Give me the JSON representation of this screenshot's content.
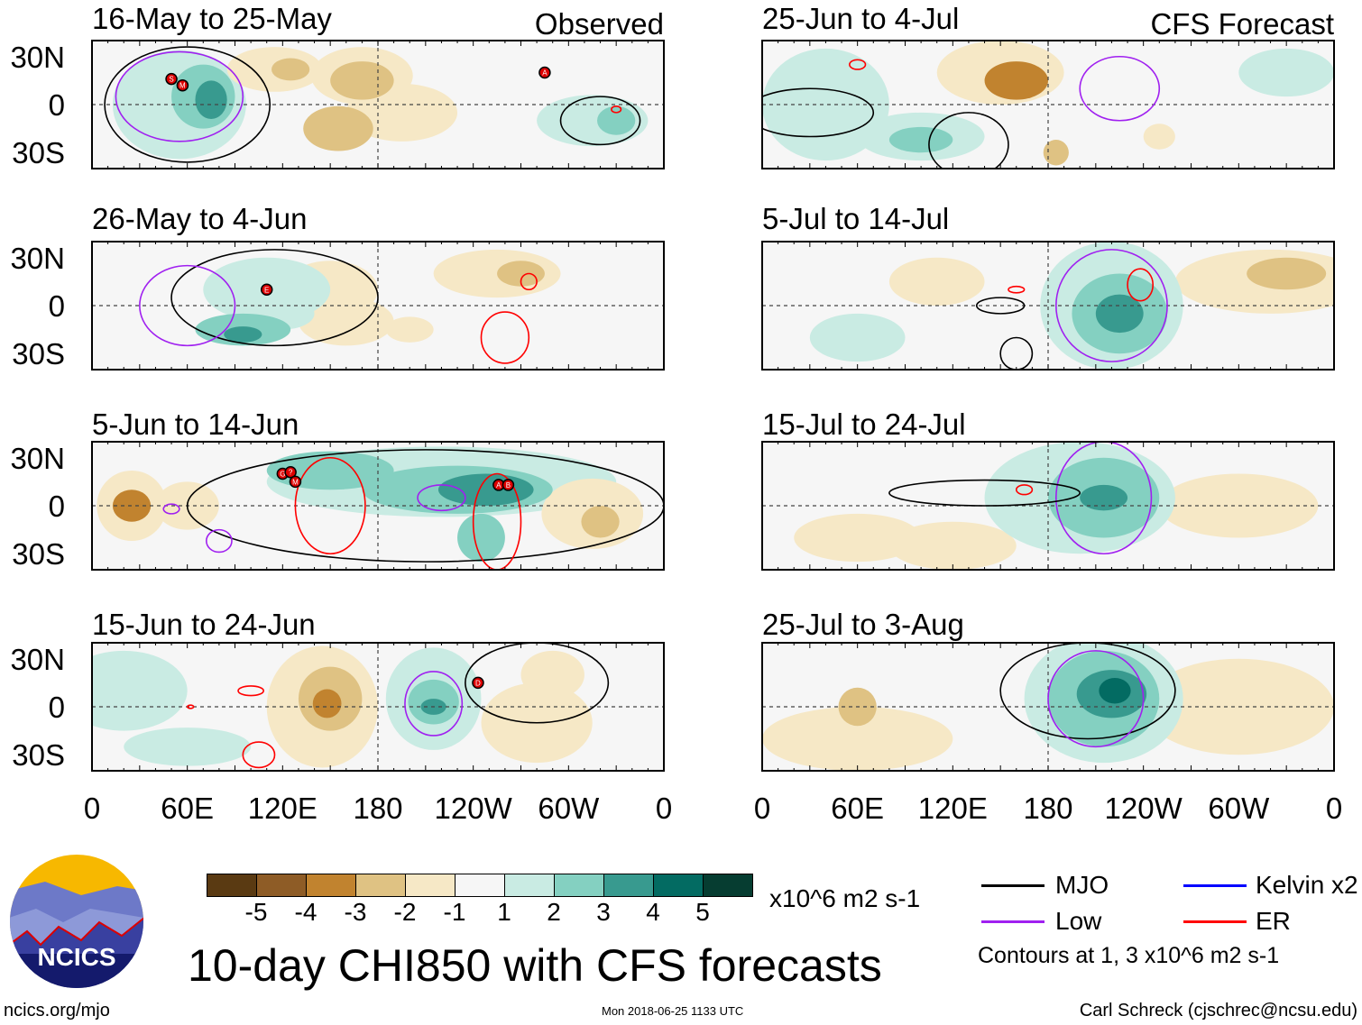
{
  "title": "10-day CHI850 with CFS forecasts",
  "logo_text": "NCICS",
  "footer": {
    "left": "ncics.org/mjo",
    "center": "Mon 2018-06-25 1133 UTC",
    "right": "Carl Schreck (cjschrec@ncsu.edu)"
  },
  "colorbar": {
    "unit": "x10^6 m2 s-1",
    "labels": [
      "-5",
      "-4",
      "-3",
      "-2",
      "-1",
      "1",
      "2",
      "3",
      "4",
      "5"
    ],
    "colors": [
      "#5a3a12",
      "#8e5c26",
      "#c1832f",
      "#dfc283",
      "#f6e8c6",
      "#f6f6f6",
      "#c9ebe3",
      "#84d0c1",
      "#389a8f",
      "#036b62",
      "#063d31"
    ]
  },
  "legend": {
    "items": [
      {
        "label": "MJO",
        "color": "#000000"
      },
      {
        "label": "Kelvin x2",
        "color": "#0000ff"
      },
      {
        "label": "Low",
        "color": "#a020f0"
      },
      {
        "label": "ER",
        "color": "#ff0000"
      }
    ],
    "note": "Contours at 1, 3 x10^6 m2 s-1"
  },
  "axes": {
    "ylabels": [
      "30N",
      "0",
      "30S"
    ],
    "ylat": [
      30,
      0,
      -30
    ],
    "xlabels": [
      "0",
      "60E",
      "120E",
      "180",
      "120W",
      "60W",
      "0"
    ],
    "xlon": [
      0,
      60,
      120,
      180,
      240,
      300,
      360
    ],
    "lat_range": [
      40,
      -40
    ],
    "lon_range": [
      0,
      360
    ]
  },
  "chart_data": {
    "type": "map",
    "panels": [
      {
        "title": "16-May to 25-May",
        "label": "Observed",
        "shading": [
          [
            55,
            0,
            42,
            34,
            1
          ],
          [
            70,
            5,
            20,
            20,
            2
          ],
          [
            75,
            3,
            10,
            12,
            3
          ],
          [
            115,
            22,
            30,
            14,
            -1
          ],
          [
            125,
            22,
            12,
            7,
            -2
          ],
          [
            170,
            18,
            32,
            18,
            -1
          ],
          [
            170,
            15,
            20,
            12,
            -2
          ],
          [
            155,
            -15,
            22,
            14,
            -2
          ],
          [
            195,
            -5,
            35,
            18,
            -1
          ],
          [
            315,
            -10,
            35,
            16,
            1
          ],
          [
            330,
            -10,
            12,
            9,
            2
          ]
        ],
        "contours": [
          [
            "MJO",
            60,
            0,
            52,
            36
          ],
          [
            "Low",
            55,
            5,
            40,
            28
          ],
          [
            "MJO",
            320,
            -10,
            25,
            15
          ],
          [
            "ER",
            330,
            -3,
            3,
            2
          ]
        ],
        "storms": [
          [
            50,
            16,
            "S"
          ],
          [
            57,
            12,
            "M"
          ],
          [
            285,
            20,
            "A"
          ]
        ]
      },
      {
        "title": "26-May to 4-Jun",
        "label": "",
        "shading": [
          [
            150,
            10,
            30,
            18,
            -1
          ],
          [
            160,
            -10,
            30,
            15,
            -1
          ],
          [
            255,
            20,
            40,
            15,
            -1
          ],
          [
            270,
            20,
            15,
            8,
            -2
          ],
          [
            200,
            -15,
            15,
            8,
            -1
          ],
          [
            110,
            10,
            40,
            20,
            1
          ],
          [
            95,
            -15,
            30,
            10,
            2
          ],
          [
            95,
            -18,
            12,
            5,
            3
          ],
          [
            120,
            -5,
            20,
            10,
            1
          ]
        ],
        "contours": [
          [
            "MJO",
            115,
            5,
            65,
            30
          ],
          [
            "Low",
            60,
            0,
            30,
            25
          ],
          [
            "ER",
            260,
            -20,
            15,
            16
          ],
          [
            "ER",
            275,
            15,
            5,
            5
          ]
        ],
        "storms": [
          [
            110,
            10,
            "E"
          ]
        ]
      },
      {
        "title": "5-Jun to 14-Jun",
        "label": "",
        "shading": [
          [
            220,
            15,
            110,
            22,
            1
          ],
          [
            230,
            10,
            60,
            15,
            2
          ],
          [
            248,
            10,
            30,
            10,
            3
          ],
          [
            245,
            -20,
            15,
            15,
            2
          ],
          [
            150,
            22,
            40,
            12,
            2
          ],
          [
            25,
            0,
            22,
            22,
            -1
          ],
          [
            25,
            0,
            12,
            10,
            -3
          ],
          [
            60,
            0,
            20,
            15,
            -1
          ],
          [
            315,
            -5,
            32,
            22,
            -1
          ],
          [
            320,
            -10,
            12,
            10,
            -2
          ]
        ],
        "contours": [
          [
            "MJO",
            210,
            0,
            150,
            35
          ],
          [
            "ER",
            255,
            -10,
            15,
            30
          ],
          [
            "ER",
            150,
            0,
            22,
            30
          ],
          [
            "Low",
            220,
            5,
            15,
            8
          ],
          [
            "Low",
            50,
            -2,
            5,
            3
          ],
          [
            "Low",
            80,
            -22,
            8,
            7
          ]
        ],
        "storms": [
          [
            120,
            20,
            "G"
          ],
          [
            125,
            21,
            "?"
          ],
          [
            128,
            15,
            "M"
          ],
          [
            256,
            13,
            "A"
          ],
          [
            262,
            13,
            "B"
          ]
        ]
      },
      {
        "title": "15-Jun to 24-Jun",
        "label": "",
        "shading": [
          [
            20,
            10,
            40,
            25,
            1
          ],
          [
            60,
            -25,
            40,
            12,
            1
          ],
          [
            215,
            5,
            30,
            32,
            1
          ],
          [
            215,
            3,
            16,
            14,
            2
          ],
          [
            215,
            0,
            8,
            5,
            3
          ],
          [
            145,
            0,
            35,
            38,
            -1
          ],
          [
            150,
            5,
            20,
            20,
            -2
          ],
          [
            148,
            2,
            9,
            9,
            -3
          ],
          [
            280,
            -10,
            35,
            25,
            -1
          ],
          [
            290,
            20,
            20,
            15,
            -1
          ]
        ],
        "contours": [
          [
            "Low",
            215,
            2,
            18,
            20
          ],
          [
            "MJO",
            280,
            15,
            45,
            25
          ],
          [
            "ER",
            100,
            10,
            8,
            3
          ],
          [
            "ER",
            105,
            -30,
            10,
            8
          ],
          [
            "ER",
            62,
            0,
            2,
            1
          ]
        ],
        "storms": [
          [
            243,
            15,
            "D"
          ]
        ]
      },
      {
        "title": "25-Jun to 4-Jul",
        "label": "CFS Forecast",
        "shading": [
          [
            150,
            20,
            40,
            20,
            -1
          ],
          [
            160,
            15,
            20,
            12,
            -3
          ],
          [
            185,
            -30,
            8,
            8,
            -2
          ],
          [
            250,
            -20,
            10,
            8,
            -1
          ],
          [
            40,
            0,
            40,
            35,
            1
          ],
          [
            100,
            -20,
            40,
            15,
            1
          ],
          [
            100,
            -22,
            20,
            8,
            2
          ],
          [
            330,
            20,
            30,
            15,
            1
          ]
        ],
        "contours": [
          [
            "Low",
            225,
            10,
            25,
            20
          ],
          [
            "MJO",
            30,
            -5,
            40,
            15
          ],
          [
            "MJO",
            130,
            -25,
            25,
            20
          ],
          [
            "ER",
            60,
            25,
            5,
            3
          ]
        ],
        "storms": []
      },
      {
        "title": "5-Jul to 14-Jul",
        "label": "",
        "shading": [
          [
            110,
            15,
            30,
            15,
            -1
          ],
          [
            320,
            15,
            60,
            20,
            -1
          ],
          [
            330,
            20,
            25,
            10,
            -2
          ],
          [
            220,
            0,
            45,
            40,
            1
          ],
          [
            225,
            -5,
            30,
            25,
            2
          ],
          [
            225,
            -5,
            15,
            12,
            3
          ],
          [
            60,
            -20,
            30,
            15,
            1
          ]
        ],
        "contours": [
          [
            "Low",
            220,
            0,
            35,
            35
          ],
          [
            "ER",
            238,
            13,
            8,
            10
          ],
          [
            "ER",
            160,
            10,
            5,
            2
          ],
          [
            "MJO",
            150,
            0,
            15,
            5
          ],
          [
            "MJO",
            160,
            -30,
            10,
            10
          ]
        ],
        "storms": []
      },
      {
        "title": "15-Jul to 24-Jul",
        "label": "",
        "shading": [
          [
            300,
            0,
            50,
            20,
            -1
          ],
          [
            60,
            -20,
            40,
            15,
            -1
          ],
          [
            120,
            -25,
            40,
            15,
            -1
          ],
          [
            200,
            5,
            60,
            35,
            1
          ],
          [
            215,
            5,
            35,
            25,
            2
          ],
          [
            215,
            5,
            15,
            8,
            3
          ]
        ],
        "contours": [
          [
            "Low",
            215,
            5,
            30,
            35
          ],
          [
            "MJO",
            140,
            8,
            60,
            8
          ],
          [
            "ER",
            165,
            10,
            5,
            3
          ]
        ],
        "storms": []
      },
      {
        "title": "25-Jul to 3-Aug",
        "label": "",
        "shading": [
          [
            60,
            -20,
            60,
            20,
            -1
          ],
          [
            300,
            0,
            60,
            30,
            -1
          ],
          [
            60,
            0,
            12,
            12,
            -2
          ],
          [
            215,
            5,
            50,
            40,
            1
          ],
          [
            215,
            5,
            35,
            30,
            2
          ],
          [
            220,
            8,
            22,
            15,
            3
          ],
          [
            222,
            10,
            10,
            8,
            4
          ]
        ],
        "contours": [
          [
            "MJO",
            205,
            10,
            55,
            30
          ],
          [
            "Low",
            210,
            5,
            30,
            30
          ]
        ],
        "storms": []
      }
    ]
  }
}
